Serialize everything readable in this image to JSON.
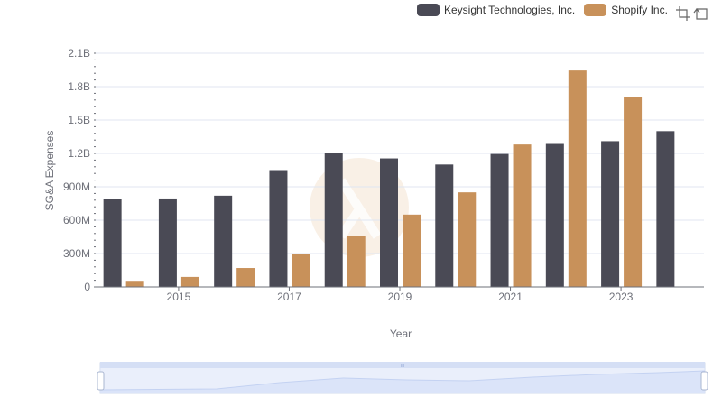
{
  "chart_data": {
    "type": "bar",
    "title": "",
    "xlabel": "Year",
    "ylabel": "SG&A Expenses",
    "x": [
      2014,
      2015,
      2016,
      2017,
      2018,
      2019,
      2020,
      2021,
      2022,
      2023,
      2024
    ],
    "x_tick_labels": [
      "2015",
      "2017",
      "2019",
      "2021",
      "2023"
    ],
    "y_tick_labels": [
      "0",
      "300M",
      "600M",
      "900M",
      "1.2B",
      "1.5B",
      "1.8B",
      "2.1B"
    ],
    "ylim": [
      0,
      2100000000
    ],
    "series": [
      {
        "name": "Keysight Technologies, Inc.",
        "color": "#4a4a55",
        "values": [
          790000000,
          795000000,
          820000000,
          1050000000,
          1205000000,
          1155000000,
          1100000000,
          1195000000,
          1285000000,
          1310000000,
          1400000000
        ]
      },
      {
        "name": "Shopify Inc.",
        "color": "#c8915a",
        "values": [
          55000000,
          90000000,
          170000000,
          295000000,
          460000000,
          650000000,
          850000000,
          1280000000,
          1945000000,
          1710000000,
          null
        ]
      }
    ],
    "legend_position": "top-right",
    "grid": true
  },
  "legend": {
    "items": [
      {
        "label": "Keysight Technologies, Inc.",
        "color": "#4a4a55"
      },
      {
        "label": "Shopify Inc.",
        "color": "#c8915a"
      }
    ]
  },
  "toolbox": {
    "zoom_icon": "zoom-icon",
    "restore_icon": "restore-icon"
  },
  "datazoom": {
    "handle_label": "III"
  }
}
